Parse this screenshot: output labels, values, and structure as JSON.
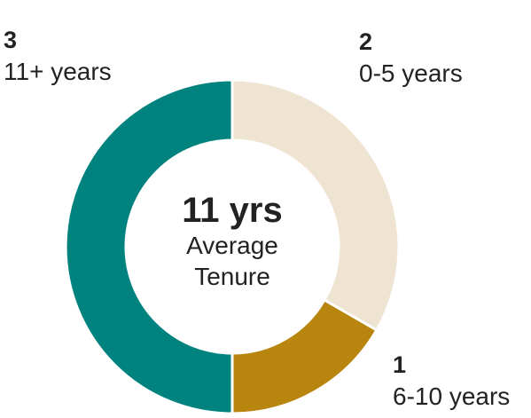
{
  "chart_data": {
    "type": "donut",
    "categories": [
      "0-5 years",
      "6-10 years",
      "11+ years"
    ],
    "values": [
      2,
      1,
      3
    ],
    "colors": [
      "#efe4d1",
      "#b8860e",
      "#00827f"
    ],
    "center_value": "11 yrs",
    "center_label": "Average Tenure"
  }
}
